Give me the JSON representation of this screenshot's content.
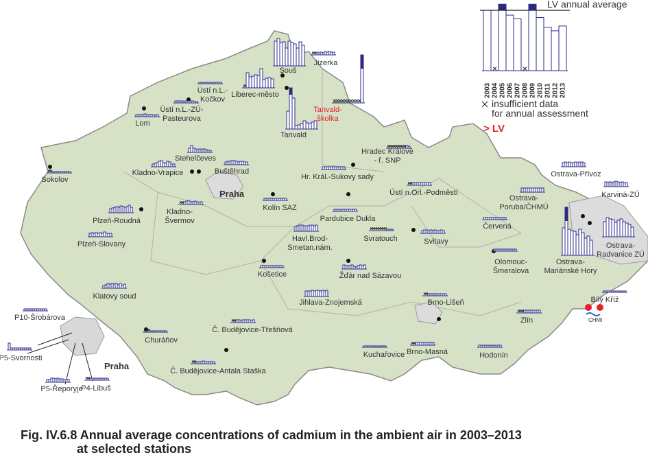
{
  "legend": {
    "lv_label": "LV annual average",
    "lv": 5,
    "values": [
      5,
      null,
      5.5,
      4.6,
      4.3,
      null,
      5.5,
      4.4,
      3.6,
      3.3,
      3.7
    ],
    "nodata": [
      "insufficient data",
      "for annual assessment"
    ],
    "exceed": "> LV",
    "exceed_color": "#e8202a"
  },
  "years": [
    "2003",
    "2004",
    "2005",
    "2006",
    "2007",
    "2008",
    "2009",
    "2010",
    "2011",
    "2012",
    "2013"
  ],
  "map_labels": {
    "praha": "Praha",
    "praha_inset": "Praha",
    "chmi": "CHMI"
  },
  "stations": [
    {
      "label": [
        "Jizerka"
      ],
      "values": [
        null,
        null,
        0.4,
        0.3,
        0.4,
        0.3,
        0.5,
        0.4,
        0.5,
        0.4,
        0.4
      ]
    },
    {
      "label": [
        "Souš"
      ],
      "values": [
        3.6,
        4,
        3.4,
        3.5,
        2.6,
        3.6,
        3.4,
        3.2,
        2.6,
        3.5,
        3
      ]
    },
    {
      "label": [
        "Liberec-město"
      ],
      "values": [
        null,
        2.2,
        1.6,
        1.7,
        1.9,
        1.8,
        2.8,
        1.2,
        1.4,
        1.5,
        1.3
      ]
    },
    {
      "label": [
        "Ústí n.L.-",
        "Kočkov"
      ],
      "values": [
        0.2,
        0.2,
        0.2,
        0.2,
        0.2,
        0.2,
        0.2,
        0.2,
        0.2,
        0.2,
        0.2
      ]
    },
    {
      "label": [
        "Tanvald"
      ],
      "values": [
        2.6,
        6,
        4.5,
        0.5,
        0.6,
        0.8,
        1.2,
        0.9,
        0.8,
        1,
        1.2
      ]
    },
    {
      "label": [
        "Tanvald-",
        "školka"
      ],
      "values": [
        null,
        null,
        null,
        null,
        null,
        null,
        null,
        null,
        null,
        null,
        7
      ],
      "color": "#e8202a"
    },
    {
      "label": [
        "Ústí n.L.-ZÚ-",
        "Pasteurova"
      ],
      "values": [
        0.3,
        0.3,
        0.3,
        0.3,
        0.2,
        0.3,
        0.3,
        0.3,
        0.3,
        0.2,
        0.2
      ]
    },
    {
      "label": [
        "Lom"
      ],
      "values": [
        0.3,
        0.3,
        0.3,
        0.3,
        0.4,
        0.3,
        0.3,
        0.3,
        0.3,
        0.2,
        0.3
      ]
    },
    {
      "label": [
        "Stehelčeves"
      ],
      "values": [
        0.6,
        1,
        0.6,
        0.5,
        0.4,
        0.5,
        0.4,
        0.5,
        0.4,
        0.3,
        0.3
      ]
    },
    {
      "label": [
        "Kladno-Vrapice"
      ],
      "values": [
        0.4,
        0.5,
        0.6,
        0.8,
        0.9,
        0.6,
        0.5,
        0.8,
        0.7,
        0.4,
        0.4
      ]
    },
    {
      "label": [
        "Buštěhrad"
      ],
      "values": [
        0.4,
        0.5,
        0.5,
        0.6,
        0.6,
        0.5,
        0.4,
        0.5,
        0.5,
        0.4,
        0.4
      ]
    },
    {
      "label": [
        "Sokolov"
      ],
      "values": [
        null,
        null,
        0.2,
        0.2,
        0.2,
        0.2,
        0.2,
        0.2,
        0.2,
        0.2,
        0.2
      ]
    },
    {
      "label": [
        "Hradec Králové",
        "- ř. SNP"
      ],
      "values": [
        null,
        null,
        null,
        null,
        null,
        null,
        null,
        null,
        null,
        0.4,
        0.3
      ]
    },
    {
      "label": [
        "Hr. Král.-Sukovy sady"
      ],
      "values": [
        0.4,
        0.4,
        0.4,
        0.4,
        0.4,
        0.4,
        0.4,
        0.4,
        0.4,
        0.4,
        0.4
      ]
    },
    {
      "label": [
        "Ústí n.Orl.-Podměstí"
      ],
      "values": [
        null,
        null,
        0.4,
        0.4,
        0.4,
        0.4,
        0.4,
        0.4,
        0.4,
        0.4,
        0.4
      ]
    },
    {
      "label": [
        "Kolín SAZ"
      ],
      "values": [
        0.3,
        0.3,
        0.3,
        0.3,
        0.3,
        0.3,
        0.3,
        0.3,
        0.3,
        0.3,
        0.3
      ]
    },
    {
      "label": [
        "Plzeň-Roudná"
      ],
      "values": [
        0.6,
        0.7,
        0.8,
        0.9,
        0.8,
        1,
        0.9,
        0.8,
        0.9,
        1.1,
        0.8
      ]
    },
    {
      "label": [
        "Kladno-",
        "Švermov"
      ],
      "values": [
        null,
        null,
        0.4,
        0.5,
        0.6,
        0.4,
        0.4,
        0.5,
        0.4,
        0.3,
        0.4
      ]
    },
    {
      "label": [
        "Pardubice Dukla"
      ],
      "values": [
        0.3,
        0.3,
        0.3,
        0.3,
        0.3,
        0.3,
        0.3,
        0.3,
        0.3,
        0.3,
        0.3
      ]
    },
    {
      "label": [
        "Havl.Brod-",
        "Smetan.nám."
      ],
      "values": [
        0.7,
        0.8,
        0.9,
        0.9,
        0.8,
        0.8,
        0.8,
        0.9,
        0.9,
        0.8,
        0.9
      ]
    },
    {
      "label": [
        "Svratouch"
      ],
      "values": [
        null,
        null,
        null,
        null,
        null,
        null,
        null,
        null,
        0.2,
        0.2,
        0.2
      ]
    },
    {
      "label": [
        "Svitavy"
      ],
      "values": [
        0.4,
        0.5,
        0.5,
        0.4,
        0.5,
        0.4,
        0.5,
        0.4,
        0.4,
        0.5,
        0.4
      ]
    },
    {
      "label": [
        "Plzeň-Slovany"
      ],
      "values": [
        0.5,
        0.6,
        0.5,
        0.6,
        0.5,
        0.6,
        0.5,
        0.7,
        0.5,
        0.5,
        0.5
      ]
    },
    {
      "label": [
        "Košetice"
      ],
      "values": [
        0.3,
        0.3,
        0.3,
        0.3,
        0.3,
        0.3,
        0.3,
        0.3,
        0.3,
        0.3,
        0.3
      ]
    },
    {
      "label": [
        "Žďár nad Sázavou"
      ],
      "values": [
        0.6,
        0.5,
        0.5,
        0.5,
        0.6,
        0.4,
        0.3,
        0.5,
        0.6,
        0.5,
        0.6
      ]
    },
    {
      "label": [
        "Klatovy soud"
      ],
      "values": [
        0.4,
        0.5,
        0.7,
        0.6,
        0.7,
        0.6,
        0.7,
        0.5,
        0.7,
        0.4,
        0.6
      ]
    },
    {
      "label": [
        "Jihlava-Znojemská"
      ],
      "values": [
        0.8,
        0.8,
        0.8,
        0.9,
        0.8,
        0.9,
        0.9,
        0.8,
        0.9,
        0.8,
        0.9
      ]
    },
    {
      "label": [
        "Olomouc-",
        "Šmeralova"
      ],
      "values": [
        0.3,
        0.3,
        0.3,
        0.3,
        0.3,
        0.3,
        0.3,
        0.3,
        0.3,
        0.3,
        0.3
      ]
    },
    {
      "label": [
        "Brno-Lišeň"
      ],
      "values": [
        null,
        null,
        0.3,
        0.3,
        0.3,
        0.3,
        0.3,
        0.3,
        0.3,
        0.3,
        0.3
      ]
    },
    {
      "label": [
        "Zlín"
      ],
      "values": [
        null,
        null,
        null,
        0.4,
        0.4,
        0.4,
        0.4,
        0.4,
        0.4,
        0.4,
        0.4
      ]
    },
    {
      "label": [
        "P10-Šrobárova"
      ],
      "values": [
        0.3,
        0.3,
        0.3,
        0.3,
        0.3,
        0.3,
        0.3,
        0.3,
        0.3,
        0.3,
        0.3
      ]
    },
    {
      "label": [
        "Churáňov"
      ],
      "values": [
        null,
        null,
        null,
        0.2,
        0.2,
        0.2,
        0.2,
        0.2,
        0.2,
        0.2,
        0.2
      ]
    },
    {
      "label": [
        "Č. Budějovice-Třešňová"
      ],
      "values": [
        null,
        null,
        0.4,
        0.4,
        0.3,
        0.4,
        0.4,
        0.4,
        0.4,
        0.3,
        0.4
      ]
    },
    {
      "label": [
        "P5-Svornosti"
      ],
      "values": [
        1,
        0.3,
        0.3,
        0.3,
        0.3,
        0.3,
        0.3,
        0.3,
        0.3,
        0.3,
        0.3
      ]
    },
    {
      "label": [
        "Kuchařovice"
      ],
      "values": [
        0.2,
        0.2,
        0.2,
        0.2,
        0.2,
        0.2,
        0.2,
        0.2,
        0.2,
        0.2,
        0.2
      ]
    },
    {
      "label": [
        "Brno-Masná"
      ],
      "values": [
        null,
        null,
        0.4,
        0.4,
        0.4,
        0.4,
        0.4,
        0.4,
        0.4,
        0.4,
        0.4
      ]
    },
    {
      "label": [
        "Hodonín"
      ],
      "values": [
        0.3,
        0.3,
        0.3,
        0.3,
        0.3,
        0.3,
        0.3,
        0.3,
        0.3,
        0.3,
        0.3
      ]
    },
    {
      "label": [
        "Č. Budějovice-Antala Staška"
      ],
      "values": [
        null,
        null,
        0.3,
        0.3,
        0.3,
        0.4,
        0.3,
        0.3,
        0.3,
        0.3,
        0.3
      ]
    },
    {
      "label": [
        "P5-Řeporyje"
      ],
      "values": [
        0.4,
        0.4,
        0.6,
        0.6,
        0.5,
        0.6,
        0.5,
        0.5,
        0.4,
        0.4,
        0.4
      ]
    },
    {
      "label": [
        "P4-Libuš"
      ],
      "values": [
        null,
        null,
        0.3,
        0.3,
        0.3,
        0.3,
        0.3,
        0.3,
        0.3,
        0.3,
        0.3
      ]
    },
    {
      "label": [
        "Ostrava-Přívoz"
      ],
      "values": [
        0.6,
        0.7,
        0.6,
        0.7,
        0.6,
        0.6,
        0.7,
        0.6,
        0.7,
        0.7,
        0.6
      ]
    },
    {
      "label": [
        "Karviná-ZÚ"
      ],
      "values": [
        0.7,
        0.6,
        0.7,
        0.6,
        0.7,
        0.8,
        0.7,
        0.6,
        0.7,
        0.6,
        0.6
      ]
    },
    {
      "label": [
        "Ostrava-",
        "Poruba/ČHMÚ"
      ],
      "values": [
        0.6,
        0.6,
        0.6,
        0.6,
        0.6,
        0.6,
        0.6,
        0.6,
        0.6,
        0.6,
        0.6
      ]
    },
    {
      "label": [
        "Červená"
      ],
      "values": [
        0.3,
        0.3,
        0.3,
        0.3,
        0.3,
        0.3,
        0.3,
        0.3,
        0.3,
        0.3,
        0.3
      ]
    },
    {
      "label": [
        "Ostrava-",
        "Radvanice ZÚ"
      ],
      "values": [
        2.2,
        2.8,
        2.6,
        2.5,
        2.1,
        2.4,
        2.6,
        2.2,
        2,
        1.8,
        1.4
      ]
    },
    {
      "label": [
        "Ostrava-",
        "Mariánské Hory"
      ],
      "values": [
        4,
        7,
        3.8,
        3.6,
        3.5,
        3,
        3.8,
        3.3,
        2.5,
        2.8,
        2.2
      ]
    },
    {
      "label": [
        "Bílý Kříž"
      ],
      "values": [
        0.2,
        0.2,
        0.2,
        0.2,
        0.2,
        0.2,
        0.2,
        0.2,
        0.2,
        0.2,
        0.2
      ]
    }
  ],
  "title": [
    "Fig. IV.6.8  Annual average concentrations of cadmium in the ambient air in 2003–2013",
    "at selected stations"
  ]
}
